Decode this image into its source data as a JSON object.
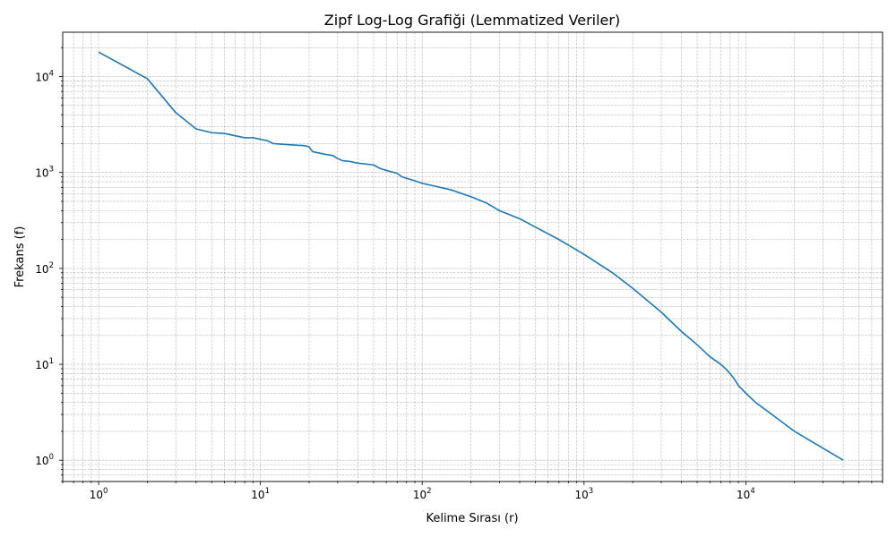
{
  "chart_data": {
    "type": "line",
    "title": "Zipf Log-Log Grafiği (Lemmatized Veriler)",
    "xlabel": "Kelime Sırası (r)",
    "ylabel": "Frekans (f)",
    "xscale": "log",
    "yscale": "log",
    "xlim": [
      0.6,
      70000
    ],
    "ylim": [
      0.6,
      29000
    ],
    "grid": true,
    "line_color": "#1f77b4",
    "x_ticks": [
      {
        "value": 1,
        "base": "10",
        "exp": "0"
      },
      {
        "value": 10,
        "base": "10",
        "exp": "1"
      },
      {
        "value": 100,
        "base": "10",
        "exp": "2"
      },
      {
        "value": 1000,
        "base": "10",
        "exp": "3"
      },
      {
        "value": 10000,
        "base": "10",
        "exp": "4"
      }
    ],
    "y_ticks": [
      {
        "value": 1,
        "base": "10",
        "exp": "0"
      },
      {
        "value": 10,
        "base": "10",
        "exp": "1"
      },
      {
        "value": 100,
        "base": "10",
        "exp": "2"
      },
      {
        "value": 1000,
        "base": "10",
        "exp": "3"
      },
      {
        "value": 10000,
        "base": "10",
        "exp": "4"
      }
    ],
    "series": [
      {
        "points": [
          [
            1,
            18000
          ],
          [
            2,
            9500
          ],
          [
            3,
            4200
          ],
          [
            4,
            2850
          ],
          [
            5,
            2600
          ],
          [
            6,
            2550
          ],
          [
            8,
            2300
          ],
          [
            9,
            2300
          ],
          [
            11,
            2150
          ],
          [
            12,
            2000
          ],
          [
            15,
            1950
          ],
          [
            19,
            1900
          ],
          [
            20,
            1850
          ],
          [
            21,
            1650
          ],
          [
            25,
            1550
          ],
          [
            28,
            1500
          ],
          [
            30,
            1400
          ],
          [
            32,
            1330
          ],
          [
            36,
            1300
          ],
          [
            40,
            1250
          ],
          [
            50,
            1200
          ],
          [
            55,
            1100
          ],
          [
            60,
            1050
          ],
          [
            70,
            980
          ],
          [
            75,
            900
          ],
          [
            90,
            820
          ],
          [
            100,
            770
          ],
          [
            120,
            720
          ],
          [
            150,
            660
          ],
          [
            200,
            560
          ],
          [
            250,
            480
          ],
          [
            300,
            400
          ],
          [
            400,
            330
          ],
          [
            500,
            270
          ],
          [
            700,
            200
          ],
          [
            1000,
            140
          ],
          [
            1500,
            90
          ],
          [
            2000,
            62
          ],
          [
            3000,
            35
          ],
          [
            4000,
            22
          ],
          [
            5000,
            16
          ],
          [
            6000,
            12
          ],
          [
            7000,
            10
          ],
          [
            7500,
            9
          ],
          [
            8000,
            8
          ],
          [
            8500,
            7
          ],
          [
            9000,
            6
          ],
          [
            10000,
            5
          ],
          [
            11500,
            4
          ],
          [
            14500,
            3
          ],
          [
            20000,
            2
          ],
          [
            40000,
            1
          ]
        ]
      }
    ]
  }
}
